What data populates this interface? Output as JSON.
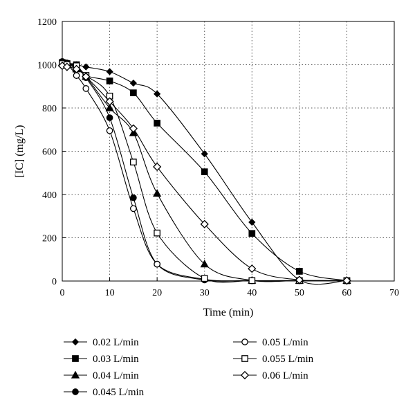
{
  "chart_data": {
    "type": "line",
    "xlabel": "Time (min)",
    "ylabel": "[IC] (mg/L)",
    "xlim": [
      0,
      70
    ],
    "ylim": [
      0,
      1200
    ],
    "xticks": [
      0,
      10,
      20,
      30,
      40,
      50,
      60,
      70
    ],
    "yticks": [
      0,
      200,
      400,
      600,
      800,
      1000,
      1200
    ],
    "grid": "dotted",
    "legend_position": "bottom",
    "series": [
      {
        "name": "0.02 L/min",
        "marker": "diamond-filled",
        "x": [
          0,
          1,
          3,
          5,
          10,
          15,
          20,
          30,
          40,
          50,
          60
        ],
        "y": [
          1010,
          1005,
          1000,
          990,
          968,
          915,
          865,
          588,
          272,
          5,
          2
        ]
      },
      {
        "name": "0.03 L/min",
        "marker": "square-filled",
        "x": [
          0,
          1,
          3,
          5,
          10,
          15,
          20,
          30,
          40,
          50,
          60
        ],
        "y": [
          1010,
          1005,
          1000,
          950,
          925,
          870,
          730,
          505,
          220,
          45,
          2
        ]
      },
      {
        "name": "0.04 L/min",
        "marker": "triangle-filled",
        "x": [
          0,
          1,
          3,
          5,
          10,
          15,
          20,
          30,
          40,
          50,
          60
        ],
        "y": [
          1010,
          1005,
          980,
          945,
          800,
          685,
          405,
          78,
          3,
          2,
          2
        ]
      },
      {
        "name": "0.045 L/min",
        "marker": "circle-filled",
        "x": [
          0,
          1,
          3,
          5,
          10,
          15,
          20,
          30,
          40,
          50,
          60
        ],
        "y": [
          1015,
          1008,
          985,
          940,
          755,
          385,
          78,
          5,
          2,
          2,
          2
        ]
      },
      {
        "name": "0.05 L/min",
        "marker": "circle-open",
        "x": [
          0,
          1,
          3,
          5,
          10,
          15,
          20,
          30,
          40,
          50,
          60
        ],
        "y": [
          1010,
          1005,
          950,
          890,
          695,
          335,
          78,
          8,
          2,
          2,
          2
        ]
      },
      {
        "name": "0.055 L/min",
        "marker": "square-open",
        "x": [
          0,
          1,
          3,
          5,
          10,
          15,
          20,
          30,
          40,
          50,
          60
        ],
        "y": [
          1005,
          1000,
          995,
          950,
          855,
          550,
          222,
          12,
          2,
          2,
          2
        ]
      },
      {
        "name": "0.06 L/min",
        "marker": "diamond-open",
        "x": [
          0,
          1,
          3,
          5,
          10,
          15,
          20,
          30,
          40,
          50,
          60
        ],
        "y": [
          995,
          990,
          980,
          945,
          830,
          705,
          528,
          263,
          57,
          5,
          2
        ]
      }
    ]
  }
}
